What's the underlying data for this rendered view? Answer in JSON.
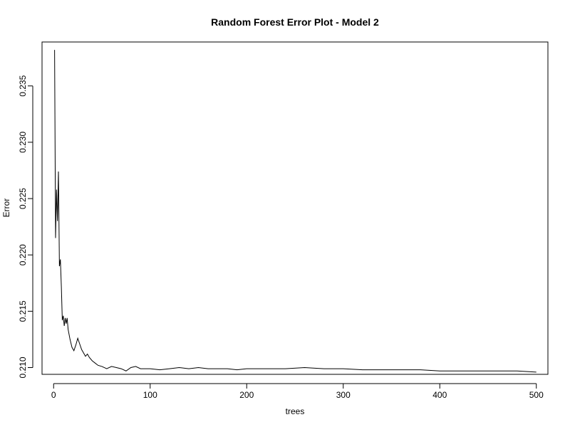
{
  "chart_data": {
    "type": "line",
    "title": "Random Forest Error Plot - Model 2",
    "xlabel": "trees",
    "ylabel": "Error",
    "xlim": [
      -12,
      512
    ],
    "ylim": [
      0.2094,
      0.2389
    ],
    "x_ticks": [
      0,
      100,
      200,
      300,
      400,
      500
    ],
    "x_tick_labels": [
      "0",
      "100",
      "200",
      "300",
      "400",
      "500"
    ],
    "y_ticks": [
      0.21,
      0.215,
      0.22,
      0.225,
      0.23,
      0.235
    ],
    "y_tick_labels": [
      "0.210",
      "0.215",
      "0.220",
      "0.225",
      "0.230",
      "0.235"
    ],
    "grid": false,
    "series": [
      {
        "color": "#000000",
        "points": [
          [
            1,
            0.2382
          ],
          [
            2,
            0.2215
          ],
          [
            3,
            0.2258
          ],
          [
            4,
            0.223
          ],
          [
            5,
            0.2274
          ],
          [
            6,
            0.219
          ],
          [
            7,
            0.2196
          ],
          [
            8,
            0.2172
          ],
          [
            9,
            0.2142
          ],
          [
            10,
            0.2146
          ],
          [
            11,
            0.2137
          ],
          [
            12,
            0.2144
          ],
          [
            13,
            0.2139
          ],
          [
            14,
            0.2144
          ],
          [
            15,
            0.2134
          ],
          [
            17,
            0.2125
          ],
          [
            19,
            0.2118
          ],
          [
            21,
            0.2115
          ],
          [
            23,
            0.212
          ],
          [
            25,
            0.2126
          ],
          [
            27,
            0.2121
          ],
          [
            29,
            0.2116
          ],
          [
            31,
            0.2113
          ],
          [
            33,
            0.211
          ],
          [
            35,
            0.2112
          ],
          [
            37,
            0.2109
          ],
          [
            40,
            0.2106
          ],
          [
            43,
            0.2104
          ],
          [
            46,
            0.2102
          ],
          [
            50,
            0.2101
          ],
          [
            55,
            0.2099
          ],
          [
            60,
            0.2101
          ],
          [
            65,
            0.21
          ],
          [
            70,
            0.2099
          ],
          [
            75,
            0.2097
          ],
          [
            80,
            0.21
          ],
          [
            85,
            0.2101
          ],
          [
            90,
            0.2099
          ],
          [
            100,
            0.2099
          ],
          [
            110,
            0.2098
          ],
          [
            120,
            0.2099
          ],
          [
            130,
            0.21
          ],
          [
            140,
            0.2099
          ],
          [
            150,
            0.21
          ],
          [
            160,
            0.2099
          ],
          [
            170,
            0.2099
          ],
          [
            180,
            0.2099
          ],
          [
            190,
            0.2098
          ],
          [
            200,
            0.2099
          ],
          [
            220,
            0.2099
          ],
          [
            240,
            0.2099
          ],
          [
            260,
            0.21
          ],
          [
            280,
            0.2099
          ],
          [
            300,
            0.2099
          ],
          [
            320,
            0.2098
          ],
          [
            340,
            0.2098
          ],
          [
            360,
            0.2098
          ],
          [
            380,
            0.2098
          ],
          [
            400,
            0.2097
          ],
          [
            420,
            0.2097
          ],
          [
            440,
            0.2097
          ],
          [
            460,
            0.2097
          ],
          [
            480,
            0.2097
          ],
          [
            500,
            0.2096
          ]
        ]
      }
    ]
  }
}
